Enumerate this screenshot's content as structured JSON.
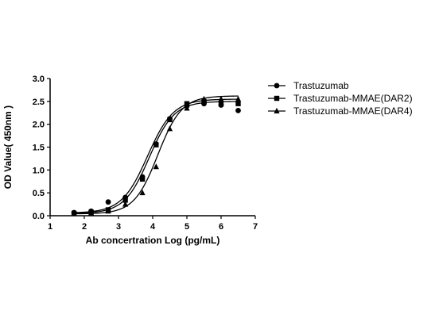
{
  "chart_data": {
    "type": "scatter",
    "title": "",
    "xlabel": "Ab concertration Log (pg/mL)",
    "ylabel": "OD Value( 450nm )",
    "xlim": [
      1,
      7
    ],
    "ylim": [
      0,
      3.0
    ],
    "xticks": [
      "1",
      "2",
      "3",
      "4",
      "5",
      "6",
      "7"
    ],
    "yticks": [
      "0.0",
      "0.5",
      "1.0",
      "1.5",
      "2.0",
      "2.5",
      "3.0"
    ],
    "grid": false,
    "legend_position": "right",
    "series": [
      {
        "name": "Trastuzumab",
        "marker": "circle",
        "color": "#000000",
        "x": [
          1.7,
          2.2,
          2.7,
          3.2,
          3.7,
          4.1,
          4.5,
          5.0,
          5.5,
          6.0,
          6.5
        ],
        "y": [
          0.07,
          0.1,
          0.3,
          0.4,
          0.85,
          1.57,
          2.12,
          2.4,
          2.45,
          2.42,
          2.3
        ],
        "fit": {
          "bottom": 0.06,
          "top": 2.55,
          "logEC50": 3.85,
          "hill": 1.15
        }
      },
      {
        "name": "Trastuzumab-MMAE(DAR2)",
        "marker": "square",
        "color": "#000000",
        "x": [
          1.7,
          2.2,
          2.7,
          3.2,
          3.7,
          4.1,
          4.5,
          5.0,
          5.5,
          6.0,
          6.5
        ],
        "y": [
          0.05,
          0.08,
          0.13,
          0.34,
          0.8,
          1.55,
          2.1,
          2.45,
          2.5,
          2.45,
          2.45
        ],
        "fit": {
          "bottom": 0.05,
          "top": 2.5,
          "logEC50": 3.9,
          "hill": 1.2
        }
      },
      {
        "name": "Trastuzumab-MMAE(DAR4)",
        "marker": "triangle",
        "color": "#000000",
        "x": [
          1.7,
          2.2,
          2.7,
          3.2,
          3.7,
          4.1,
          4.5,
          5.0,
          5.5,
          6.0,
          6.5
        ],
        "y": [
          0.05,
          0.06,
          0.1,
          0.25,
          0.5,
          1.07,
          1.9,
          2.35,
          2.55,
          2.55,
          2.55
        ],
        "fit": {
          "bottom": 0.04,
          "top": 2.62,
          "logEC50": 4.15,
          "hill": 1.25
        }
      }
    ]
  }
}
